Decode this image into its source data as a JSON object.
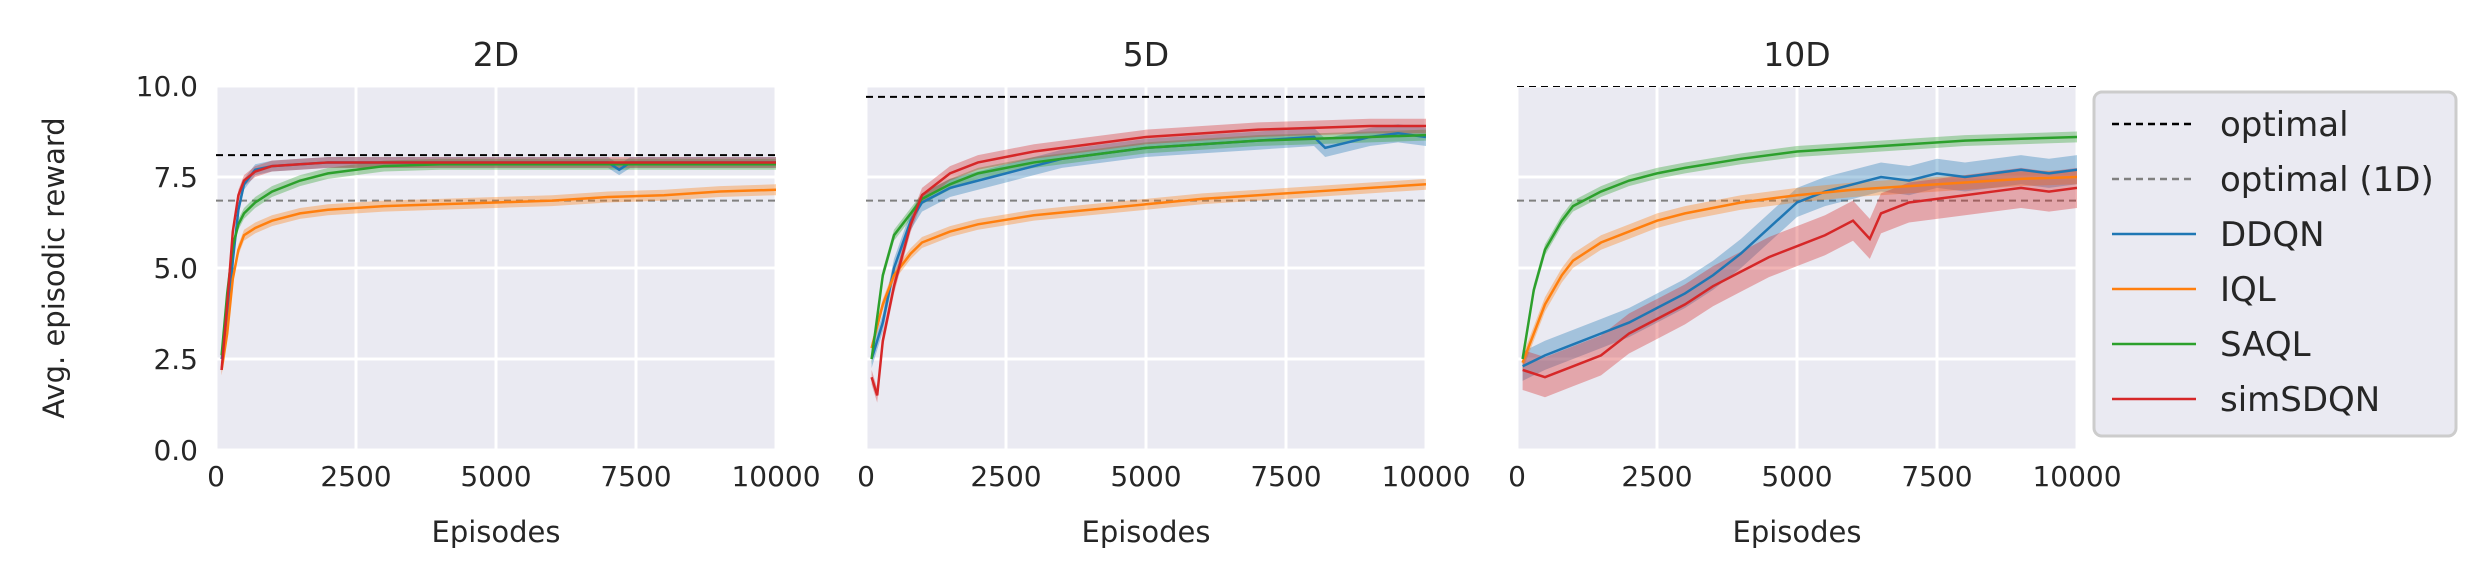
{
  "chart_data": [
    {
      "type": "line",
      "title": "2D",
      "xlabel": "Episodes",
      "ylabel": "Avg. episodic reward",
      "xlim": [
        0,
        10000
      ],
      "ylim": [
        0,
        10
      ],
      "x_ticks": [
        0,
        2500,
        5000,
        7500,
        10000
      ],
      "y_ticks": [
        "0.0",
        "2.5",
        "5.0",
        "7.5",
        "10.0"
      ],
      "grid": true,
      "reference_lines": [
        {
          "name": "optimal",
          "y": 8.1,
          "style": "dashed",
          "color": "#000000"
        },
        {
          "name": "optimal (1D)",
          "y": 6.85,
          "style": "dashed",
          "color": "#808080"
        }
      ],
      "series": [
        {
          "name": "DDQN",
          "x": [
            100,
            200,
            300,
            400,
            500,
            700,
            1000,
            1500,
            2000,
            2500,
            3000,
            4000,
            5000,
            6000,
            7000,
            7200,
            7400,
            8000,
            9000,
            10000
          ],
          "y": [
            2.5,
            3.3,
            5.2,
            6.6,
            7.3,
            7.7,
            7.8,
            7.85,
            7.9,
            7.9,
            7.9,
            7.9,
            7.9,
            7.9,
            7.9,
            7.7,
            7.9,
            7.9,
            7.9,
            7.9
          ],
          "band": 0.15
        },
        {
          "name": "IQL",
          "x": [
            100,
            200,
            300,
            400,
            500,
            700,
            1000,
            1500,
            2000,
            3000,
            4000,
            5000,
            6000,
            7000,
            8000,
            9000,
            10000
          ],
          "y": [
            2.2,
            3.2,
            4.7,
            5.5,
            5.9,
            6.1,
            6.3,
            6.5,
            6.6,
            6.7,
            6.75,
            6.8,
            6.85,
            6.95,
            7.0,
            7.1,
            7.15
          ],
          "band": 0.15
        },
        {
          "name": "SAQL",
          "x": [
            100,
            200,
            300,
            400,
            500,
            700,
            1000,
            1500,
            2000,
            3000,
            4000,
            5000,
            6000,
            7000,
            8000,
            9000,
            10000
          ],
          "y": [
            2.6,
            4.3,
            5.6,
            6.2,
            6.5,
            6.8,
            7.1,
            7.4,
            7.6,
            7.8,
            7.85,
            7.85,
            7.85,
            7.85,
            7.85,
            7.85,
            7.85
          ],
          "band": 0.15
        },
        {
          "name": "simSDQN",
          "x": [
            100,
            200,
            300,
            400,
            500,
            700,
            1000,
            1500,
            2000,
            3000,
            4000,
            5000,
            6000,
            7000,
            8000,
            9000,
            10000
          ],
          "y": [
            2.2,
            4.0,
            6.0,
            7.0,
            7.4,
            7.65,
            7.8,
            7.85,
            7.9,
            7.9,
            7.9,
            7.9,
            7.9,
            7.9,
            7.9,
            7.9,
            7.9
          ],
          "band": 0.15
        }
      ]
    },
    {
      "type": "line",
      "title": "5D",
      "xlabel": "Episodes",
      "ylabel": "",
      "xlim": [
        0,
        10000
      ],
      "ylim": [
        0,
        10
      ],
      "x_ticks": [
        0,
        2500,
        5000,
        7500,
        10000
      ],
      "grid": true,
      "reference_lines": [
        {
          "name": "optimal",
          "y": 9.7,
          "style": "dashed",
          "color": "#000000"
        },
        {
          "name": "optimal (1D)",
          "y": 6.85,
          "style": "dashed",
          "color": "#808080"
        }
      ],
      "series": [
        {
          "name": "DDQN",
          "x": [
            100,
            300,
            500,
            800,
            1000,
            1500,
            2000,
            2500,
            3000,
            3500,
            4000,
            5000,
            6000,
            7000,
            7500,
            8000,
            8200,
            9000,
            9500,
            10000
          ],
          "y": [
            2.5,
            3.5,
            5.0,
            6.3,
            6.8,
            7.2,
            7.4,
            7.6,
            7.8,
            8.0,
            8.1,
            8.3,
            8.4,
            8.5,
            8.55,
            8.6,
            8.3,
            8.6,
            8.7,
            8.6
          ],
          "band": 0.25
        },
        {
          "name": "IQL",
          "x": [
            100,
            300,
            500,
            800,
            1000,
            1500,
            2000,
            3000,
            4000,
            5000,
            6000,
            7000,
            8000,
            9000,
            10000
          ],
          "y": [
            2.8,
            4.0,
            4.8,
            5.4,
            5.7,
            6.0,
            6.2,
            6.45,
            6.6,
            6.75,
            6.9,
            7.0,
            7.1,
            7.2,
            7.3
          ],
          "band": 0.15
        },
        {
          "name": "SAQL",
          "x": [
            100,
            300,
            500,
            800,
            1000,
            1500,
            2000,
            3000,
            4000,
            5000,
            6000,
            7000,
            8000,
            9000,
            10000
          ],
          "y": [
            2.5,
            4.8,
            5.9,
            6.5,
            6.9,
            7.3,
            7.6,
            7.9,
            8.1,
            8.3,
            8.4,
            8.5,
            8.55,
            8.6,
            8.65
          ],
          "band": 0.15
        },
        {
          "name": "simSDQN",
          "x": [
            100,
            200,
            300,
            500,
            800,
            1000,
            1500,
            2000,
            3000,
            4000,
            5000,
            6000,
            7000,
            8000,
            9000,
            10000
          ],
          "y": [
            2.0,
            1.5,
            3.0,
            4.5,
            6.2,
            7.0,
            7.6,
            7.9,
            8.2,
            8.4,
            8.6,
            8.7,
            8.8,
            8.85,
            8.9,
            8.9
          ],
          "band": 0.2
        }
      ]
    },
    {
      "type": "line",
      "title": "10D",
      "xlabel": "Episodes",
      "ylabel": "",
      "xlim": [
        0,
        10000
      ],
      "ylim": [
        0,
        10
      ],
      "x_ticks": [
        0,
        2500,
        5000,
        7500,
        10000
      ],
      "grid": true,
      "reference_lines": [
        {
          "name": "optimal",
          "y": 10.0,
          "style": "dashed",
          "color": "#000000"
        },
        {
          "name": "optimal (1D)",
          "y": 6.85,
          "style": "dashed",
          "color": "#808080"
        }
      ],
      "series": [
        {
          "name": "DDQN",
          "x": [
            100,
            500,
            1000,
            1500,
            2000,
            2500,
            3000,
            3500,
            4000,
            4500,
            5000,
            5500,
            6000,
            6500,
            7000,
            7500,
            8000,
            8500,
            9000,
            9500,
            10000
          ],
          "y": [
            2.3,
            2.6,
            2.9,
            3.2,
            3.5,
            3.9,
            4.3,
            4.8,
            5.4,
            6.1,
            6.8,
            7.1,
            7.3,
            7.5,
            7.4,
            7.6,
            7.5,
            7.6,
            7.7,
            7.6,
            7.7
          ],
          "band": 0.4
        },
        {
          "name": "IQL",
          "x": [
            100,
            300,
            500,
            800,
            1000,
            1500,
            2000,
            2500,
            3000,
            4000,
            5000,
            6000,
            7000,
            8000,
            9000,
            10000
          ],
          "y": [
            2.4,
            3.2,
            4.0,
            4.8,
            5.2,
            5.7,
            6.0,
            6.3,
            6.5,
            6.8,
            7.0,
            7.15,
            7.25,
            7.35,
            7.45,
            7.5
          ],
          "band": 0.2
        },
        {
          "name": "SAQL",
          "x": [
            100,
            300,
            500,
            800,
            1000,
            1500,
            2000,
            2500,
            3000,
            4000,
            5000,
            6000,
            7000,
            8000,
            9000,
            10000
          ],
          "y": [
            2.5,
            4.4,
            5.5,
            6.3,
            6.7,
            7.1,
            7.4,
            7.6,
            7.75,
            8.0,
            8.2,
            8.3,
            8.4,
            8.5,
            8.55,
            8.6
          ],
          "band": 0.15
        },
        {
          "name": "simSDQN",
          "x": [
            100,
            500,
            1000,
            1500,
            2000,
            2500,
            3000,
            3500,
            4000,
            4500,
            5000,
            5500,
            6000,
            6300,
            6500,
            7000,
            7500,
            8000,
            8500,
            9000,
            9500,
            10000
          ],
          "y": [
            2.2,
            2.0,
            2.3,
            2.6,
            3.2,
            3.6,
            4.0,
            4.5,
            4.9,
            5.3,
            5.6,
            5.9,
            6.3,
            5.8,
            6.5,
            6.8,
            6.9,
            7.0,
            7.1,
            7.2,
            7.1,
            7.2
          ],
          "band": 0.55
        }
      ]
    }
  ],
  "legend": {
    "placement": "right",
    "entries": [
      {
        "label": "optimal",
        "color": "#000000",
        "style": "dashed"
      },
      {
        "label": "optimal (1D)",
        "color": "#808080",
        "style": "dashed"
      },
      {
        "label": "DDQN",
        "color": "#1f77b4",
        "style": "solid"
      },
      {
        "label": "IQL",
        "color": "#ff7f0e",
        "style": "solid"
      },
      {
        "label": "SAQL",
        "color": "#2ca02c",
        "style": "solid"
      },
      {
        "label": "simSDQN",
        "color": "#d62728",
        "style": "solid"
      }
    ]
  },
  "colors": {
    "DDQN": "#1f77b4",
    "IQL": "#ff7f0e",
    "SAQL": "#2ca02c",
    "simSDQN": "#d62728",
    "optimal": "#000000",
    "optimal (1D)": "#808080",
    "panel_background": "#eaeaf2",
    "grid": "#ffffff"
  }
}
